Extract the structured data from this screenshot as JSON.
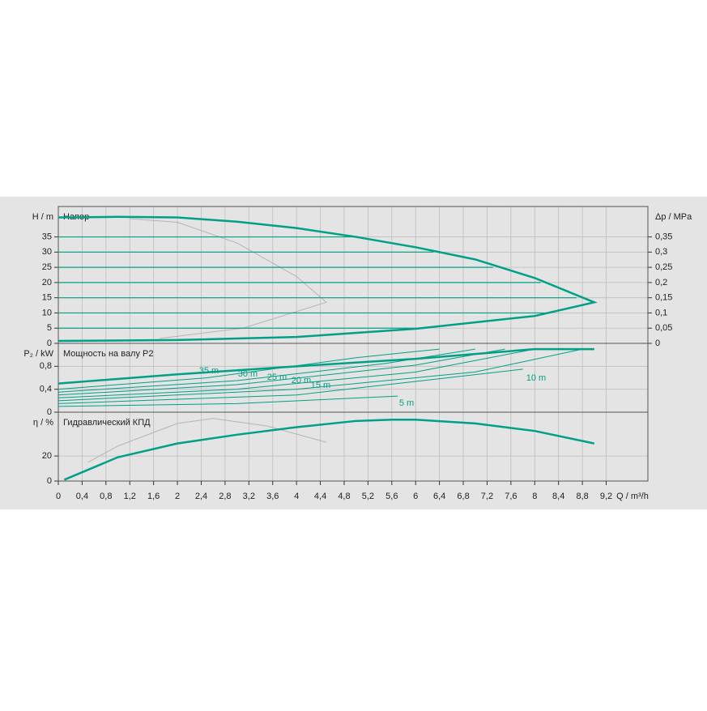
{
  "chart_data": [
    {
      "type": "line",
      "title": "Напор",
      "ylabel": "H / m",
      "y2label": "Δp / MPa",
      "xlim": [
        0,
        9.9
      ],
      "ylim": [
        0,
        45
      ],
      "yticks": [
        0,
        5,
        10,
        15,
        20,
        25,
        30,
        35
      ],
      "y2lim": [
        0,
        0.45
      ],
      "y2ticks": [
        0,
        {
          "value": 0.05,
          "label": "0,05"
        },
        {
          "value": 0.1,
          "label": "0,1"
        },
        {
          "value": 0.15,
          "label": "0,15"
        },
        {
          "value": 0.2,
          "label": "0,2"
        },
        {
          "value": 0.25,
          "label": "0,25"
        },
        {
          "value": 0.3,
          "label": "0,3"
        },
        {
          "value": 0.35,
          "label": "0,35"
        }
      ],
      "grid": true,
      "series": [
        {
          "color": "#b4b4b4",
          "line_width": 1,
          "x": [
            1.2,
            2,
            3,
            4,
            4.5,
            3.1,
            1.7
          ],
          "values": [
            41,
            39.8,
            33,
            22,
            13.5,
            5,
            1.6
          ]
        },
        {
          "color": "#00a087",
          "line_width": 1.2,
          "x": [
            0,
            5
          ],
          "values": [
            35,
            35
          ]
        },
        {
          "color": "#00a087",
          "line_width": 1.2,
          "x": [
            0,
            6.3
          ],
          "values": [
            30,
            30
          ]
        },
        {
          "color": "#00a087",
          "line_width": 1.2,
          "x": [
            0,
            7.3
          ],
          "values": [
            25,
            25
          ]
        },
        {
          "color": "#00a087",
          "line_width": 1.2,
          "x": [
            0,
            8.1
          ],
          "values": [
            20,
            20
          ]
        },
        {
          "color": "#00a087",
          "line_width": 1.2,
          "x": [
            0,
            8.7
          ],
          "values": [
            15,
            15
          ]
        },
        {
          "color": "#00a087",
          "line_width": 1.2,
          "x": [
            0,
            8.2
          ],
          "values": [
            10,
            10
          ]
        },
        {
          "color": "#00a087",
          "line_width": 1.2,
          "x": [
            0,
            6
          ],
          "values": [
            5,
            5
          ]
        },
        {
          "color": "#00a087",
          "line_width": 2.5,
          "x": [
            0,
            1,
            2,
            3,
            4,
            5,
            6,
            7,
            8,
            9,
            8,
            6,
            4,
            2,
            0
          ],
          "values": [
            41.4,
            41.6,
            41.4,
            40,
            37.9,
            35,
            31.6,
            27.6,
            21.5,
            13.5,
            9,
            4.8,
            2.1,
            1.1,
            0.8
          ]
        }
      ]
    },
    {
      "type": "line",
      "title": "Мощность на валу P2",
      "ylabel": "P₂ / kW",
      "xlim": [
        0,
        9.9
      ],
      "ylim": [
        0,
        1.2
      ],
      "yticks": [
        0,
        {
          "value": 0.4,
          "label": "0,4"
        },
        {
          "value": 0.8,
          "label": "0,8"
        }
      ],
      "grid": true,
      "series": [
        {
          "name": "35 m",
          "color": "#00a087",
          "line_width": 1,
          "x": [
            0,
            2.5,
            5,
            6.4
          ],
          "values": [
            0.4,
            0.6,
            0.95,
            1.1
          ]
        },
        {
          "name": "30 m",
          "color": "#00a087",
          "line_width": 1,
          "x": [
            0,
            3,
            5.5,
            7
          ],
          "values": [
            0.35,
            0.55,
            0.85,
            1.1
          ]
        },
        {
          "name": "25 m",
          "color": "#00a087",
          "line_width": 1,
          "x": [
            0,
            3,
            6,
            7.5
          ],
          "values": [
            0.3,
            0.48,
            0.82,
            1.1
          ]
        },
        {
          "name": "20 m",
          "color": "#00a087",
          "line_width": 1,
          "x": [
            0,
            3,
            6,
            8
          ],
          "values": [
            0.25,
            0.4,
            0.7,
            1.1
          ]
        },
        {
          "name": "15 m",
          "color": "#00a087",
          "line_width": 1,
          "x": [
            0,
            4,
            7,
            8.8
          ],
          "values": [
            0.2,
            0.4,
            0.7,
            1.1
          ]
        },
        {
          "name": "10 m",
          "color": "#00a087",
          "line_width": 1,
          "x": [
            0,
            4,
            7.8
          ],
          "values": [
            0.15,
            0.3,
            0.75
          ]
        },
        {
          "name": "5 m",
          "color": "#00a087",
          "line_width": 1,
          "x": [
            0,
            3,
            5.7
          ],
          "values": [
            0.1,
            0.15,
            0.28
          ]
        },
        {
          "color": "#00a087",
          "line_width": 2.5,
          "x": [
            0,
            2,
            4,
            6,
            8,
            9
          ],
          "values": [
            0.5,
            0.66,
            0.8,
            0.93,
            1.1,
            1.1
          ]
        }
      ]
    },
    {
      "type": "line",
      "title": "Гидравлический КПД",
      "ylabel": "η / %",
      "xlabel": "Q / m³/h",
      "xlim": [
        0,
        9.9
      ],
      "ylim": [
        0,
        55
      ],
      "yticks": [
        0,
        20
      ],
      "xticks": [
        0,
        {
          "value": 0.4,
          "label": "0,4"
        },
        {
          "value": 0.8,
          "label": "0,8"
        },
        {
          "value": 1.2,
          "label": "1,2"
        },
        {
          "value": 1.6,
          "label": "1,6"
        },
        2,
        {
          "value": 2.4,
          "label": "2,4"
        },
        {
          "value": 2.8,
          "label": "2,8"
        },
        {
          "value": 3.2,
          "label": "3,2"
        },
        {
          "value": 3.6,
          "label": "3,6"
        },
        4,
        {
          "value": 4.4,
          "label": "4,4"
        },
        {
          "value": 4.8,
          "label": "4,8"
        },
        {
          "value": 5.2,
          "label": "5,2"
        },
        {
          "value": 5.6,
          "label": "5,6"
        },
        6,
        {
          "value": 6.4,
          "label": "6,4"
        },
        {
          "value": 6.8,
          "label": "6,8"
        },
        {
          "value": 7.2,
          "label": "7,2"
        },
        {
          "value": 7.6,
          "label": "7,6"
        },
        8,
        {
          "value": 8.4,
          "label": "8,4"
        },
        {
          "value": 8.8,
          "label": "8,8"
        },
        {
          "value": 9.2,
          "label": "9,2"
        }
      ],
      "grid": true,
      "series": [
        {
          "color": "#b4b4b4",
          "line_width": 1,
          "x": [
            0.5,
            1,
            2,
            2.6,
            3.5,
            4.5
          ],
          "values": [
            15,
            28,
            46,
            50,
            44,
            31
          ]
        },
        {
          "color": "#00a087",
          "line_width": 2.5,
          "x": [
            0.1,
            1,
            2,
            3,
            4,
            5,
            5.6,
            6,
            7,
            8,
            9
          ],
          "values": [
            1,
            19,
            30,
            37,
            43,
            48,
            49,
            49,
            46,
            40,
            30
          ]
        }
      ]
    }
  ]
}
